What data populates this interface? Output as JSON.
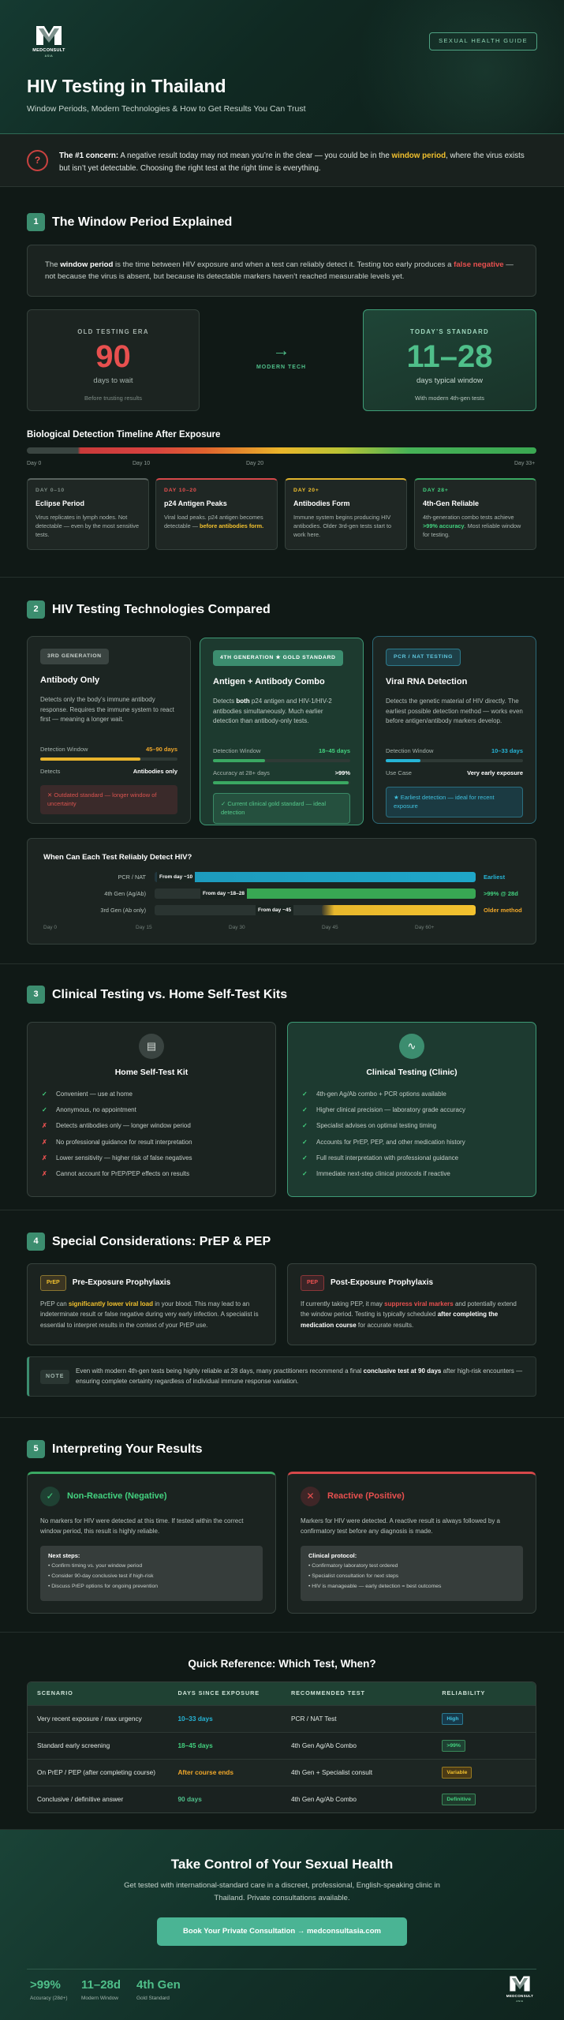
{
  "hero": {
    "brand": "MEDCONSULT",
    "brand_sub": "ASIA",
    "badge": "SEXUAL HEALTH GUIDE",
    "title": "HIV Testing in Thailand",
    "subtitle": "Window Periods, Modern Technologies & How to Get Results You Can Trust"
  },
  "concern": {
    "icon": "?",
    "lead": "The #1 concern:",
    "text1": " A negative result today may not mean you’re in the clear — you could be in the ",
    "highlight": "window period",
    "text2": ", where the virus exists but isn’t yet detectable. Choosing the right test at the right time is everything."
  },
  "s1": {
    "num": "1",
    "title": "The Window Period Explained",
    "def": {
      "p1": "The ",
      "b1": "window period",
      "p2": " is the time between HIV exposure and when a test can reliably detect it. Testing too early produces a ",
      "fn": "false negative",
      "p3": " — not because the virus is absent, but because its detectable markers haven’t reached measurable levels yet."
    },
    "old": {
      "label": "OLD TESTING ERA",
      "value": "90",
      "unit": "days to wait",
      "note": "Before trusting results"
    },
    "arrow": {
      "glyph": "→",
      "label": "MODERN TECH"
    },
    "new": {
      "label": "TODAY’S STANDARD",
      "value": "11–28",
      "unit": "days typical window",
      "note": "With modern 4th-gen tests"
    },
    "timeline_title": "Biological Detection Timeline After Exposure",
    "ticks": [
      "Day 0",
      "Day 10",
      "Day 20",
      "Day 33+"
    ],
    "stages": [
      {
        "tag": "DAY 0–10",
        "name": "Eclipse Period",
        "desc": "Virus replicates in lymph nodes. Not detectable — even by the most sensitive tests."
      },
      {
        "tag": "DAY 10–20",
        "name": "p24 Antigen Peaks",
        "desc_a": "Viral load peaks. p24 antigen becomes detectable — ",
        "desc_b": "before antibodies form."
      },
      {
        "tag": "DAY 20+",
        "name": "Antibodies Form",
        "desc": "Immune system begins producing HIV antibodies. Older 3rd-gen tests start to work here."
      },
      {
        "tag": "DAY 28+",
        "name": "4th-Gen Reliable",
        "desc_a": "4th-generation combo tests achieve ",
        "desc_b": ">99% accuracy",
        "desc_c": ". Most reliable window for testing."
      }
    ]
  },
  "s2": {
    "num": "2",
    "title": "HIV Testing Technologies Compared",
    "techs": [
      {
        "badge": "3RD GENERATION",
        "name": "Antibody Only",
        "desc": "Detects only the body’s immune antibody response. Requires the immune system to react first — meaning a longer wait.",
        "k1": "Detection Window",
        "v1": "45–90 days",
        "k2": "Detects",
        "v2": "Antibodies only",
        "note": "✕ Outdated standard — longer window of uncertainty"
      },
      {
        "badge": "4TH GENERATION ★ GOLD STANDARD",
        "name": "Antigen + Antibody Combo",
        "desc_a": "Detects ",
        "desc_b": "both",
        "desc_c": " p24 antigen and HIV-1/HIV-2 antibodies simultaneously. Much earlier detection than antibody-only tests.",
        "k1": "Detection Window",
        "v1": "18–45 days",
        "k2": "Accuracy at 28+ days",
        "v2": ">99%",
        "note": "✓ Current clinical gold standard — ideal detection"
      },
      {
        "badge": "PCR / NAT TESTING",
        "name": "Viral RNA Detection",
        "desc": "Detects the genetic material of HIV directly. The earliest possible detection method — works even before antigen/antibody markers develop.",
        "k1": "Detection Window",
        "v1": "10–33 days",
        "k2": "Use Case",
        "v2": "Very early exposure",
        "note": "★ Earliest detection — ideal for recent exposure"
      }
    ],
    "compare": {
      "title": "When Can Each Test Reliably Detect HIV?",
      "rows": [
        {
          "label": "PCR / NAT",
          "bar": "From day ~10",
          "result": "Earliest"
        },
        {
          "label": "4th Gen (Ag/Ab)",
          "bar": "From day ~18–28",
          "result": ">99% @ 28d"
        },
        {
          "label": "3rd Gen (Ab only)",
          "bar": "From day ~45",
          "result": "Older method"
        }
      ],
      "axis": [
        "Day 0",
        "Day 15",
        "Day 30",
        "Day 45",
        "Day 60+"
      ]
    }
  },
  "s3": {
    "num": "3",
    "title": "Clinical Testing vs. Home Self-Test Kits",
    "home": {
      "name": "Home Self-Test Kit",
      "items": [
        {
          "mark": "✓",
          "text": "Convenient — use at home"
        },
        {
          "mark": "✓",
          "text": "Anonymous, no appointment"
        },
        {
          "mark": "✗",
          "text": "Detects antibodies only — longer window period"
        },
        {
          "mark": "✗",
          "text": "No professional guidance for result interpretation"
        },
        {
          "mark": "✗",
          "text": "Lower sensitivity — higher risk of false negatives"
        },
        {
          "mark": "✗",
          "text": "Cannot account for PrEP/PEP effects on results"
        }
      ]
    },
    "clinic": {
      "name": "Clinical Testing (Clinic)",
      "items": [
        {
          "mark": "✓",
          "text": "4th-gen Ag/Ab combo + PCR options available"
        },
        {
          "mark": "✓",
          "text": "Higher clinical precision — laboratory grade accuracy"
        },
        {
          "mark": "✓",
          "text": "Specialist advises on optimal testing timing"
        },
        {
          "mark": "✓",
          "text": "Accounts for PrEP, PEP, and other medication history"
        },
        {
          "mark": "✓",
          "text": "Full result interpretation with professional guidance"
        },
        {
          "mark": "✓",
          "text": "Immediate next-step clinical protocols if reactive"
        }
      ]
    }
  },
  "s4": {
    "num": "4",
    "title": "Special Considerations: PrEP & PEP",
    "prep": {
      "tag": "PrEP",
      "name": "Pre-Exposure Prophylaxis",
      "a": "PrEP can ",
      "b": "significantly lower viral load",
      "c": " in your blood. This may lead to an indeterminate result or false negative during very early infection. A specialist is essential to interpret results in the context of your PrEP use."
    },
    "pep": {
      "tag": "PEP",
      "name": "Post-Exposure Prophylaxis",
      "a": "If currently taking PEP, it may ",
      "b": "suppress viral markers",
      "c": " and potentially extend the window period. Testing is typically scheduled ",
      "d": "after completing the medication course",
      "e": " for accurate results."
    },
    "note": {
      "tag": "NOTE",
      "a": "Even with modern 4th-gen tests being highly reliable at 28 days, many practitioners recommend a final ",
      "b": "conclusive test at 90 days",
      "c": " after high-risk encounters — ensuring complete certainty regardless of individual immune response variation."
    }
  },
  "s5": {
    "num": "5",
    "title": "Interpreting Your Results",
    "neg": {
      "icon": "✓",
      "title": "Non-Reactive (Negative)",
      "desc": "No markers for HIV were detected at this time. If tested within the correct window period, this result is highly reliable.",
      "box_title": "Next steps:",
      "items": [
        "• Confirm timing vs. your window period",
        "• Consider 90-day conclusive test if high-risk",
        "• Discuss PrEP options for ongoing prevention"
      ]
    },
    "pos": {
      "icon": "✕",
      "title": "Reactive (Positive)",
      "desc": "Markers for HIV were detected. A reactive result is always followed by a confirmatory test before any diagnosis is made.",
      "box_title": "Clinical protocol:",
      "items": [
        "• Confirmatory laboratory test ordered",
        "• Specialist consultation for next steps",
        "• HIV is manageable — early detection = best outcomes"
      ]
    }
  },
  "qr": {
    "title": "Quick Reference: Which Test, When?",
    "headers": [
      "SCENARIO",
      "DAYS SINCE EXPOSURE",
      "RECOMMENDED TEST",
      "RELIABILITY"
    ],
    "rows": [
      {
        "scenario": "Very recent exposure / max urgency",
        "days": "10–33 days",
        "test": "PCR / NAT Test",
        "rel": "High"
      },
      {
        "scenario": "Standard early screening",
        "days": "18–45 days",
        "test": "4th Gen Ag/Ab Combo",
        "rel": ">99%"
      },
      {
        "scenario": "On PrEP / PEP (after completing course)",
        "days": "After course ends",
        "test": "4th Gen + Specialist consult",
        "rel": "Variable"
      },
      {
        "scenario": "Conclusive / definitive answer",
        "days": "90 days",
        "test": "4th Gen Ag/Ab Combo",
        "rel": "Definitive"
      }
    ]
  },
  "cta": {
    "title": "Take Control of Your Sexual Health",
    "sub": "Get tested with international-standard care in a discreet, professional, English-speaking clinic in Thailand. Private consultations available.",
    "button": "Book Your Private Consultation → medconsultasia.com",
    "stats": [
      {
        "v": ">99%",
        "l": "Accuracy (28d+)"
      },
      {
        "v": "11–28d",
        "l": "Modern Window"
      },
      {
        "v": "4th Gen",
        "l": "Gold Standard"
      }
    ]
  }
}
